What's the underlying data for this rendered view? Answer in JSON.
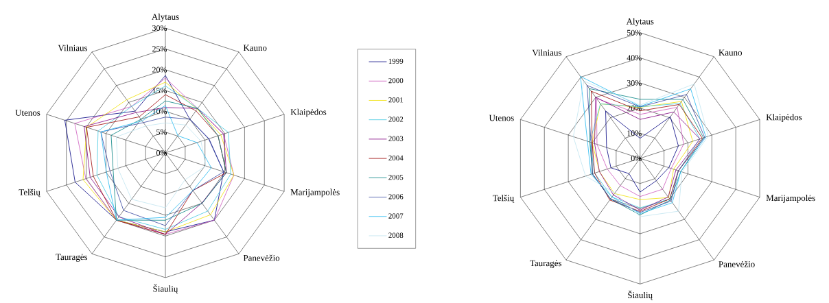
{
  "chart_data": [
    {
      "type": "radar",
      "categories": [
        "Alytaus",
        "Kauno",
        "Klaipėdos",
        "Marijampolės",
        "Panevėžio",
        "Šiaulių",
        "Tauragės",
        "Telšių",
        "Utenos",
        "Vilniaus"
      ],
      "ylim": [
        0,
        30
      ],
      "yticks": [
        {
          "value": 0,
          "label": "0%"
        },
        {
          "value": 5,
          "label": "5%"
        },
        {
          "value": 10,
          "label": "10%"
        },
        {
          "value": 15,
          "label": "15%"
        },
        {
          "value": 20,
          "label": "20%"
        },
        {
          "value": 25,
          "label": "25%"
        },
        {
          "value": 30,
          "label": "30%"
        }
      ],
      "grid": true,
      "legend": "right",
      "series": [
        {
          "name": "1999",
          "color": "#000080",
          "values": [
            18.6,
            10.0,
            11.0,
            14.7,
            20.0,
            19.0,
            20.0,
            22.8,
            25.4,
            12.4
          ]
        },
        {
          "name": "2000",
          "color": "#cc55bb",
          "values": [
            18.0,
            13.2,
            14.7,
            17.3,
            20.0,
            19.6,
            20.0,
            20.1,
            22.9,
            13.8
          ]
        },
        {
          "name": "2001",
          "color": "#f0e000",
          "values": [
            17.0,
            13.0,
            14.0,
            17.3,
            18.4,
            19.0,
            20.0,
            20.8,
            19.9,
            15.8
          ]
        },
        {
          "name": "2002",
          "color": "#40c8e0",
          "values": [
            16.1,
            13.2,
            15.9,
            16.5,
            17.3,
            18.4,
            19.0,
            17.3,
            17.0,
            13.8
          ]
        },
        {
          "name": "2003",
          "color": "#800080",
          "values": [
            10.9,
            13.2,
            14.7,
            15.4,
            14.9,
            19.6,
            19.0,
            19.0,
            20.5,
            12.0
          ]
        },
        {
          "name": "2004",
          "color": "#990000",
          "values": [
            14.0,
            12.5,
            13.3,
            15.4,
            11.2,
            19.6,
            20.0,
            18.2,
            19.9,
            10.7
          ]
        },
        {
          "name": "2005",
          "color": "#008080",
          "values": [
            12.5,
            13.2,
            13.3,
            15.4,
            15.0,
            16.2,
            20.0,
            13.2,
            13.7,
            10.0
          ]
        },
        {
          "name": "2006",
          "color": "#3344a0",
          "values": [
            8.6,
            10.0,
            10.9,
            14.7,
            11.2,
            17.5,
            17.1,
            14.0,
            16.3,
            9.0
          ]
        },
        {
          "name": "2007",
          "color": "#20b8f0",
          "values": [
            11.4,
            5.1,
            8.0,
            11.6,
            11.2,
            15.5,
            20.0,
            14.9,
            16.3,
            9.5
          ]
        },
        {
          "name": "2008",
          "color": "#c0e4f0",
          "values": [
            7.2,
            8.3,
            9.0,
            10.2,
            8.0,
            13.2,
            13.8,
            12.0,
            12.4,
            8.0
          ]
        }
      ]
    },
    {
      "type": "radar",
      "categories": [
        "Alytaus",
        "Kauno",
        "Klaipėdos",
        "Marijampolės",
        "Panevėžio",
        "Šiaulių",
        "Tauragės",
        "Telšių",
        "Utenos",
        "Vilniaus"
      ],
      "ylim": [
        0,
        50
      ],
      "yticks": [
        {
          "value": 0,
          "label": "0%"
        },
        {
          "value": 10,
          "label": "10%"
        },
        {
          "value": 20,
          "label": "20%"
        },
        {
          "value": 30,
          "label": "30%"
        },
        {
          "value": 40,
          "label": "40%"
        },
        {
          "value": 50,
          "label": "50%"
        }
      ],
      "grid": true,
      "series": [
        {
          "color": "#000080",
          "values": [
            8.0,
            20.5,
            16.0,
            12.0,
            11.0,
            13.4,
            7.5,
            12.2,
            14.0,
            23.3
          ]
        },
        {
          "color": "#cc55bb",
          "values": [
            17.5,
            25.1,
            18.2,
            13.0,
            15.2,
            15.2,
            13.4,
            13.7,
            18.0,
            29.5
          ]
        },
        {
          "color": "#f0e000",
          "values": [
            20.3,
            28.0,
            22.0,
            14.0,
            19.3,
            16.4,
            17.3,
            17.0,
            20.0,
            26.8
          ]
        },
        {
          "color": "#40c8e0",
          "values": [
            20.5,
            27.0,
            25.0,
            16.0,
            20.0,
            19.7,
            19.0,
            19.0,
            21.0,
            26.8
          ]
        },
        {
          "color": "#800080",
          "values": [
            15.5,
            22.8,
            25.0,
            15.0,
            19.0,
            20.6,
            18.0,
            17.0,
            19.0,
            30.1
          ]
        },
        {
          "color": "#990000",
          "values": [
            18.9,
            26.5,
            26.0,
            16.0,
            20.0,
            21.1,
            20.5,
            19.0,
            20.0,
            33.0
          ]
        },
        {
          "color": "#008080",
          "values": [
            23.5,
            29.0,
            26.5,
            17.0,
            20.5,
            22.5,
            20.0,
            19.9,
            21.0,
            34.3
          ]
        },
        {
          "color": "#3344a0",
          "values": [
            20.5,
            31.4,
            27.0,
            16.0,
            21.0,
            21.5,
            20.0,
            19.9,
            20.5,
            35.9
          ]
        },
        {
          "color": "#20b8f0",
          "values": [
            20.7,
            34.2,
            27.5,
            17.0,
            21.8,
            22.0,
            19.0,
            20.5,
            22.0,
            40.3
          ]
        },
        {
          "color": "#c0e4f0",
          "values": [
            21.2,
            36.6,
            28.5,
            17.5,
            26.0,
            23.2,
            17.0,
            22.8,
            27.9,
            38.0
          ]
        }
      ]
    }
  ]
}
